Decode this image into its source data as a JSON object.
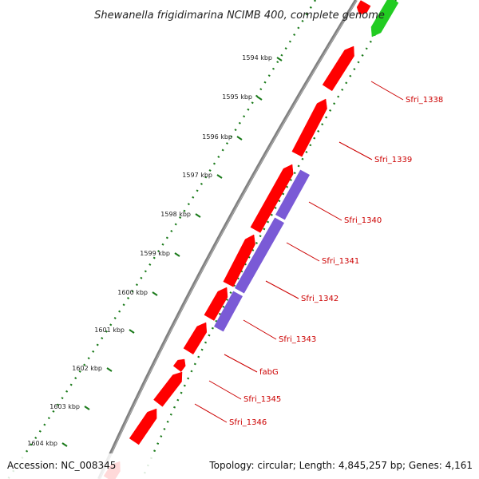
{
  "title": "Shewanella frigidimarina NCIMB 400, complete genome",
  "accession": "Accession: NC_008345",
  "topology": "Topology: circular; Length: 4,845,257 bp; Genes: 4,161",
  "colors": {
    "backbone": "#808080",
    "cds_forward": "#ff0000",
    "cds_reverse": "#7a5ad6",
    "green_feature": "#22cc22",
    "tick": "#1a7a1a",
    "gene_label": "#cc0000"
  },
  "kbp_ticks": [
    {
      "label": "1594 kbp"
    },
    {
      "label": "1595 kbp"
    },
    {
      "label": "1596 kbp"
    },
    {
      "label": "1597 kbp"
    },
    {
      "label": "1598 kbp"
    },
    {
      "label": "1599 kbp"
    },
    {
      "label": "1600 kbp"
    },
    {
      "label": "1601 kbp"
    },
    {
      "label": "1602 kbp"
    },
    {
      "label": "1603 kbp"
    },
    {
      "label": "1604 kbp"
    }
  ],
  "gene_labels": [
    {
      "label": "Sfri_1338"
    },
    {
      "label": "Sfri_1339"
    },
    {
      "label": "Sfri_1340"
    },
    {
      "label": "Sfri_1341"
    },
    {
      "label": "Sfri_1342"
    },
    {
      "label": "Sfri_1343"
    },
    {
      "label": "fabG"
    },
    {
      "label": "Sfri_1345"
    },
    {
      "label": "Sfri_1346"
    }
  ]
}
